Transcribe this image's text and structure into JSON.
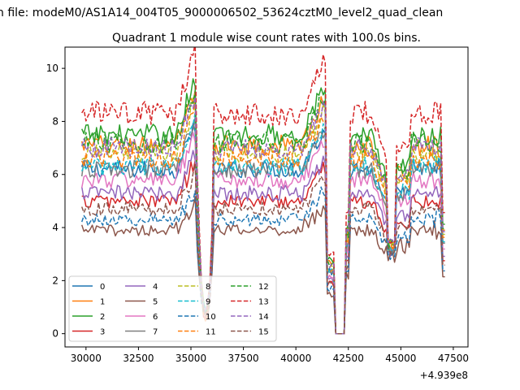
{
  "chart_data": {
    "type": "line",
    "suptitle": "n file: modeM0/AS1A14_004T05_9000006502_53624cztM0_level2_quad_clean",
    "title": "Quadrant 1 module wise count rates with 100.0s bins.",
    "xlabel": "",
    "ylabel": "",
    "x_offset_label": "+4.939e8",
    "xlim": [
      29000,
      48200
    ],
    "ylim": [
      -0.5,
      10.8
    ],
    "xticks": [
      30000,
      32500,
      35000,
      37500,
      40000,
      42500,
      45000,
      47500
    ],
    "xtick_labels": [
      "30000",
      "32500",
      "35000",
      "37500",
      "40000",
      "42500",
      "45000",
      "47500"
    ],
    "yticks": [
      0,
      2,
      4,
      6,
      8,
      10
    ],
    "ytick_labels": [
      "0",
      "2",
      "4",
      "6",
      "8",
      "10"
    ],
    "legend_position": "lower-left",
    "legend_columns": 4,
    "x_range": [
      29800,
      47100
    ],
    "bin_seconds": 100,
    "series": [
      {
        "name": "0",
        "color": "#1f77b4",
        "dash": "solid",
        "level": 6.2
      },
      {
        "name": "1",
        "color": "#ff7f0e",
        "dash": "solid",
        "level": 7.1
      },
      {
        "name": "2",
        "color": "#2ca02c",
        "dash": "solid",
        "level": 7.5
      },
      {
        "name": "3",
        "color": "#d62728",
        "dash": "solid",
        "level": 5.0
      },
      {
        "name": "4",
        "color": "#9467bd",
        "dash": "solid",
        "level": 5.3
      },
      {
        "name": "5",
        "color": "#8c564b",
        "dash": "solid",
        "level": 3.9
      },
      {
        "name": "6",
        "color": "#e377c2",
        "dash": "solid",
        "level": 5.8
      },
      {
        "name": "7",
        "color": "#7f7f7f",
        "dash": "solid",
        "level": 6.2
      },
      {
        "name": "8",
        "color": "#bcbd22",
        "dash": "dashed",
        "level": 6.8
      },
      {
        "name": "9",
        "color": "#17becf",
        "dash": "dashed",
        "level": 6.3
      },
      {
        "name": "10",
        "color": "#1f77b4",
        "dash": "dashed",
        "level": 4.3
      },
      {
        "name": "11",
        "color": "#ff7f0e",
        "dash": "dashed",
        "level": 6.6
      },
      {
        "name": "12",
        "color": "#2ca02c",
        "dash": "dashed",
        "level": 7.2
      },
      {
        "name": "13",
        "color": "#d62728",
        "dash": "dashed",
        "level": 8.3
      },
      {
        "name": "14",
        "color": "#9467bd",
        "dash": "dashed",
        "level": 7.0
      },
      {
        "name": "15",
        "color": "#8c564b",
        "dash": "dashed",
        "level": 4.7
      }
    ],
    "features": {
      "dip_1": {
        "x": [
          35300,
          36100
        ],
        "min_value": 0.4
      },
      "gap": {
        "x": [
          41900,
          42300
        ],
        "value": 0.0
      },
      "dip_2": {
        "x": [
          44400,
          44800
        ],
        "min_value": 2.4
      }
    }
  }
}
